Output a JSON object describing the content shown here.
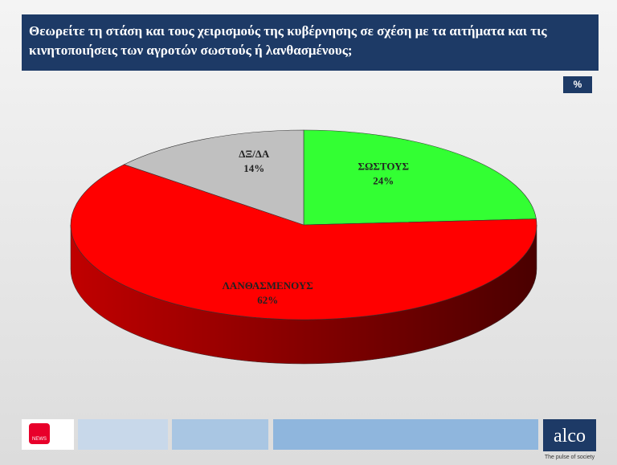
{
  "chart_data": {
    "type": "pie",
    "title": "Θεωρείτε τη στάση και τους χειρισμούς της κυβέρνησης σε σχέση με τα αιτήματα και τις κινητοποιήσεις των αγροτών σωστούς ή λανθασμένους;",
    "badge": "%",
    "categories": [
      "ΣΩΣΤΟΥΣ",
      "ΛΑΝΘΑΣΜΕΝΟΥΣ",
      "ΔΞ/ΔΑ"
    ],
    "values": [
      24,
      62,
      14
    ],
    "value_labels": [
      "24%",
      "62%",
      "14%"
    ],
    "colors": [
      "#33ff33",
      "#ff0000",
      "#c0c0c0"
    ]
  },
  "branding": {
    "channel": "NEWS",
    "logo": "alco",
    "tagline": "The pulse of society"
  }
}
